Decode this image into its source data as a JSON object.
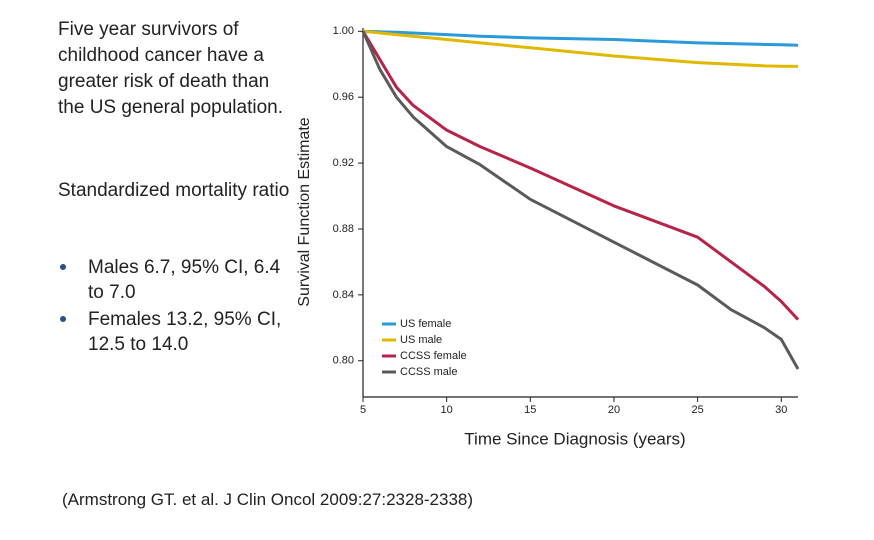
{
  "slide": {
    "heading": "Five year survivors of childhood cancer have a greater risk of death than the US general population.",
    "subheading": "Standardized mortality ratio",
    "bullets": [
      "Males 6.7, 95% CI, 6.4 to 7.0",
      "Females 13.2, 95% CI, 12.5 to 14.0"
    ],
    "citation": "(Armstrong GT. et al. J Clin Oncol 2009:27:2328-2338)"
  },
  "chart_data": {
    "type": "line",
    "x_label": "Time Since Diagnosis (years)",
    "y_label": "Survival Function Estimate",
    "x": [
      5,
      6,
      7,
      8,
      10,
      12,
      15,
      20,
      25,
      27,
      29,
      30,
      31
    ],
    "series": [
      {
        "name": "US female",
        "color": "#2a9ad8",
        "values": [
          1.0,
          0.9997,
          0.9994,
          0.999,
          0.998,
          0.997,
          0.996,
          0.995,
          0.993,
          0.9925,
          0.992,
          0.9918,
          0.9915
        ]
      },
      {
        "name": "US male",
        "color": "#e0b800",
        "values": [
          1.0,
          0.999,
          0.998,
          0.997,
          0.995,
          0.993,
          0.99,
          0.985,
          0.981,
          0.98,
          0.979,
          0.9788,
          0.9787
        ]
      },
      {
        "name": "CCSS female",
        "color": "#b8234a",
        "values": [
          1.0,
          0.983,
          0.966,
          0.955,
          0.94,
          0.93,
          0.917,
          0.894,
          0.875,
          0.86,
          0.845,
          0.836,
          0.825
        ]
      },
      {
        "name": "CCSS male",
        "color": "#5a5a5a",
        "values": [
          1.0,
          0.977,
          0.96,
          0.948,
          0.93,
          0.919,
          0.898,
          0.872,
          0.846,
          0.831,
          0.82,
          0.813,
          0.795
        ]
      }
    ],
    "xlim": [
      5,
      31
    ],
    "ylim": [
      0.778,
      1.002
    ],
    "xticks": [
      5,
      10,
      15,
      20,
      25,
      30
    ],
    "yticks": [
      {
        "value": 1,
        "label": "1.00"
      },
      0.96,
      0.92,
      0.88,
      0.84,
      {
        "value": 0.8,
        "label": "0.80"
      }
    ],
    "legend": "lower-left",
    "grid": false
  }
}
